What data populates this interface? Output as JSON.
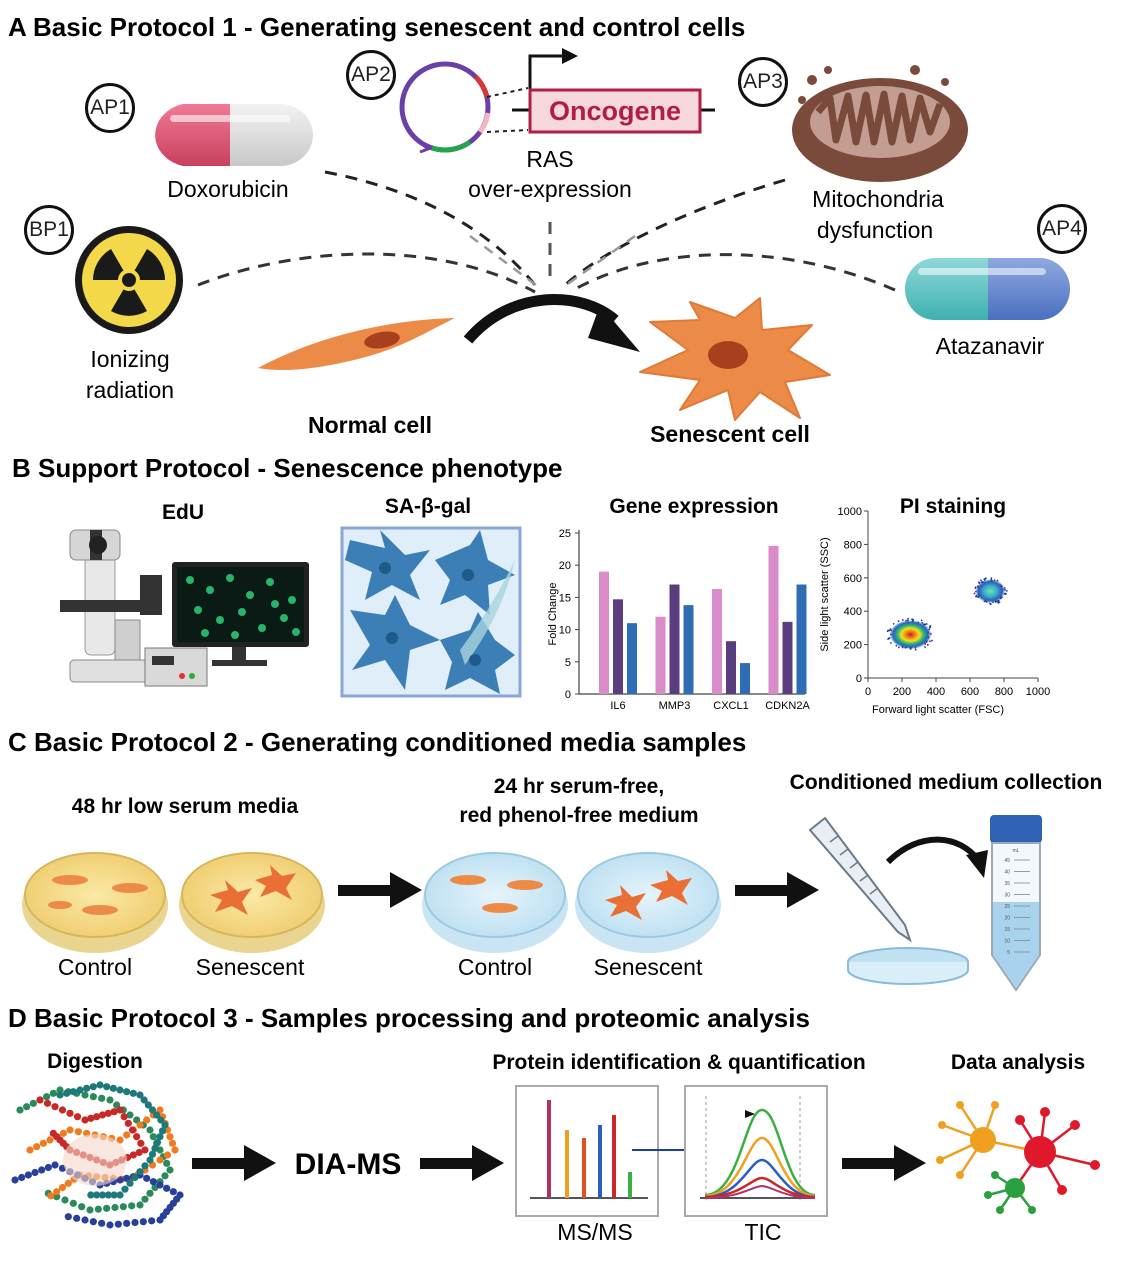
{
  "sections": {
    "a": {
      "title": "A Basic Protocol 1 -  Generating senescent and control cells",
      "badges": [
        "AP1",
        "AP2",
        "AP3",
        "BP1",
        "AP4"
      ],
      "oncogene": "Oncogene",
      "labels": {
        "doxorubicin": "Doxorubicin",
        "ras1": "RAS",
        "ras2": "over-expression",
        "mito1": "Mitochondria",
        "mito2": "dysfunction",
        "ion1": "Ionizing",
        "ion2": "radiation",
        "atazanavir": "Atazanavir",
        "normal": "Normal cell",
        "senescent": "Senescent cell"
      }
    },
    "b": {
      "title": "B Support Protocol -  Senescence phenotype",
      "edu": "EdU",
      "sagal": "SA-β-gal",
      "gene": "Gene expression",
      "pi": "PI staining"
    },
    "c": {
      "title": "C Basic Protocol 2 -  Generating conditioned media samples",
      "step1": "48 hr low serum media",
      "step2a": "24 hr serum-free,",
      "step2b": "red phenol-free medium",
      "step3": "Conditioned medium collection",
      "control1": "Control",
      "senescent1": "Senescent",
      "control2": "Control",
      "senescent2": "Senescent",
      "tube_ml": "mL",
      "tube_ticks": [
        "45",
        "40",
        "35",
        "30",
        "25",
        "20",
        "15",
        "10",
        "5"
      ]
    },
    "d": {
      "title": "D Basic Protocol 3 -  Samples processing and proteomic analysis",
      "digestion": "Digestion",
      "diams": "DIA-MS",
      "protein": "Protein identification & quantification",
      "data": "Data analysis",
      "msms": "MS/MS",
      "tic": "TIC"
    }
  },
  "chart_data": [
    {
      "type": "bar",
      "title": "Gene expression",
      "xlabel": "",
      "ylabel": "Fold Change",
      "ylim": [
        0,
        25
      ],
      "yticks": [
        "0",
        "5",
        "10",
        "15",
        "20",
        "25"
      ],
      "categories": [
        "IL6",
        "MMP3",
        "CXCL1",
        "CDKN2A"
      ],
      "series": [
        {
          "values": [
            19,
            12,
            16.3,
            23
          ],
          "color": "#d98cc9"
        },
        {
          "values": [
            14.7,
            17,
            8.2,
            11.2
          ],
          "color": "#5a3d7f"
        },
        {
          "values": [
            11,
            13.8,
            4.8,
            17
          ],
          "color": "#2e6db4"
        }
      ]
    },
    {
      "type": "scatter",
      "title": "PI staining",
      "xlabel": "Forward light scatter (FSC)",
      "ylabel": "Side light scatter (SSC)",
      "xlim": [
        0,
        1000
      ],
      "ylim": [
        0,
        1000
      ],
      "xticks": [
        "0",
        "200",
        "400",
        "600",
        "800",
        "1000"
      ],
      "yticks": [
        "0",
        "200",
        "400",
        "600",
        "800",
        "1000"
      ],
      "clusters": [
        {
          "cx": 250,
          "cy": 260,
          "sx": 120,
          "sy": 85
        },
        {
          "cx": 720,
          "cy": 520,
          "sx": 85,
          "sy": 70
        }
      ]
    }
  ]
}
